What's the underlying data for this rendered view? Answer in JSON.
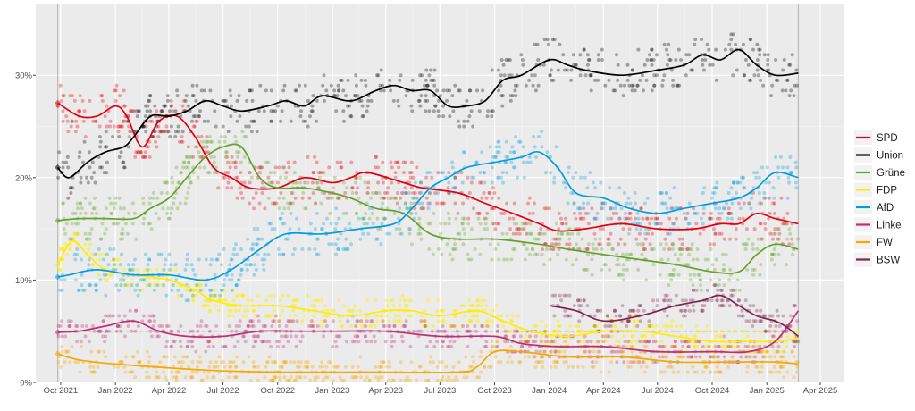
{
  "chart_data": {
    "type": "line",
    "title": "",
    "xlabel": "",
    "ylabel": "",
    "x_ticks": [
      "Oct 2021",
      "Jan 2022",
      "Apr 2022",
      "Jul 2022",
      "Oct 2022",
      "Jan 2023",
      "Apr 2023",
      "Jul 2023",
      "Oct 2023",
      "Jan 2024",
      "Apr 2024",
      "Jul 2024",
      "Oct 2024",
      "Jan 2025",
      "Apr 2025"
    ],
    "y_ticks": [
      "0%",
      "10%",
      "20%",
      "30%"
    ],
    "ylim": [
      0,
      37
    ],
    "xlim": [
      "2021-08-20",
      "2025-05-10"
    ],
    "reference_lines_x": [
      "2021-09-26",
      "2025-02-23"
    ],
    "threshold_y": 5,
    "grid": true,
    "legend_position": "right",
    "series": [
      {
        "name": "SPD",
        "color": "#e3000f",
        "points": [
          [
            "2021-09-26",
            27.3
          ],
          [
            "2021-11-01",
            26.0
          ],
          [
            "2021-12-01",
            26.0
          ],
          [
            "2022-01-01",
            27.0
          ],
          [
            "2022-01-20",
            26.0
          ],
          [
            "2022-02-15",
            23.0
          ],
          [
            "2022-03-15",
            25.5
          ],
          [
            "2022-04-15",
            26.0
          ],
          [
            "2022-05-15",
            24.0
          ],
          [
            "2022-06-15",
            21.0
          ],
          [
            "2022-07-15",
            20.0
          ],
          [
            "2022-08-15",
            19.0
          ],
          [
            "2022-10-01",
            19.0
          ],
          [
            "2022-11-15",
            20.0
          ],
          [
            "2023-01-01",
            19.5
          ],
          [
            "2023-02-01",
            20.0
          ],
          [
            "2023-03-01",
            20.5
          ],
          [
            "2023-05-01",
            19.5
          ],
          [
            "2023-06-01",
            19.0
          ],
          [
            "2023-08-01",
            18.5
          ],
          [
            "2023-09-15",
            17.5
          ],
          [
            "2023-11-01",
            16.5
          ],
          [
            "2023-12-15",
            15.5
          ],
          [
            "2024-01-15",
            14.8
          ],
          [
            "2024-03-01",
            15.0
          ],
          [
            "2024-05-01",
            15.5
          ],
          [
            "2024-07-01",
            15.0
          ],
          [
            "2024-09-01",
            15.0
          ],
          [
            "2024-10-15",
            15.5
          ],
          [
            "2024-11-15",
            15.5
          ],
          [
            "2024-12-15",
            16.5
          ],
          [
            "2025-01-15",
            16.0
          ],
          [
            "2025-02-23",
            15.5
          ]
        ]
      },
      {
        "name": "Union",
        "color": "#000000",
        "points": [
          [
            "2021-09-26",
            21.0
          ],
          [
            "2021-10-15",
            20.0
          ],
          [
            "2021-11-15",
            21.5
          ],
          [
            "2021-12-15",
            22.5
          ],
          [
            "2022-01-15",
            23.0
          ],
          [
            "2022-02-01",
            24.0
          ],
          [
            "2022-03-01",
            26.0
          ],
          [
            "2022-04-01",
            26.0
          ],
          [
            "2022-05-01",
            26.5
          ],
          [
            "2022-06-01",
            27.5
          ],
          [
            "2022-07-01",
            27.0
          ],
          [
            "2022-08-01",
            26.5
          ],
          [
            "2022-09-15",
            27.0
          ],
          [
            "2022-10-15",
            27.5
          ],
          [
            "2022-11-15",
            27.0
          ],
          [
            "2022-12-15",
            28.0
          ],
          [
            "2023-02-01",
            27.5
          ],
          [
            "2023-03-15",
            28.5
          ],
          [
            "2023-04-15",
            29.0
          ],
          [
            "2023-05-15",
            28.5
          ],
          [
            "2023-06-15",
            28.5
          ],
          [
            "2023-07-15",
            27.0
          ],
          [
            "2023-08-15",
            27.0
          ],
          [
            "2023-09-15",
            27.5
          ],
          [
            "2023-10-15",
            29.5
          ],
          [
            "2023-11-15",
            30.0
          ],
          [
            "2024-01-01",
            31.5
          ],
          [
            "2024-02-01",
            31.0
          ],
          [
            "2024-03-01",
            30.5
          ],
          [
            "2024-05-01",
            30.0
          ],
          [
            "2024-07-01",
            30.5
          ],
          [
            "2024-08-15",
            31.0
          ],
          [
            "2024-09-15",
            32.0
          ],
          [
            "2024-10-15",
            31.5
          ],
          [
            "2024-11-15",
            32.5
          ],
          [
            "2024-12-15",
            31.0
          ],
          [
            "2025-01-15",
            30.0
          ],
          [
            "2025-02-23",
            30.2
          ]
        ]
      },
      {
        "name": "Grüne",
        "color": "#64a12d",
        "points": [
          [
            "2021-09-26",
            15.8
          ],
          [
            "2021-11-01",
            16.0
          ],
          [
            "2021-12-15",
            16.0
          ],
          [
            "2022-02-01",
            16.0
          ],
          [
            "2022-03-01",
            17.0
          ],
          [
            "2022-04-01",
            18.0
          ],
          [
            "2022-05-01",
            20.0
          ],
          [
            "2022-06-01",
            22.0
          ],
          [
            "2022-07-01",
            23.0
          ],
          [
            "2022-08-01",
            23.0
          ],
          [
            "2022-09-01",
            20.0
          ],
          [
            "2022-10-01",
            19.0
          ],
          [
            "2022-11-15",
            19.0
          ],
          [
            "2023-01-01",
            18.5
          ],
          [
            "2023-02-01",
            18.0
          ],
          [
            "2023-03-15",
            17.0
          ],
          [
            "2023-05-01",
            16.5
          ],
          [
            "2023-06-15",
            14.5
          ],
          [
            "2023-08-01",
            14.0
          ],
          [
            "2023-10-01",
            14.0
          ],
          [
            "2023-12-15",
            13.5
          ],
          [
            "2024-02-01",
            13.0
          ],
          [
            "2024-04-01",
            12.5
          ],
          [
            "2024-06-01",
            12.0
          ],
          [
            "2024-08-01",
            11.5
          ],
          [
            "2024-10-01",
            10.8
          ],
          [
            "2024-11-15",
            10.8
          ],
          [
            "2024-12-15",
            12.5
          ],
          [
            "2025-01-15",
            13.5
          ],
          [
            "2025-02-23",
            13.0
          ]
        ]
      },
      {
        "name": "FDP",
        "color": "#ffed00",
        "points": [
          [
            "2021-09-26",
            11.5
          ],
          [
            "2021-10-20",
            13.8
          ],
          [
            "2021-11-15",
            12.5
          ],
          [
            "2021-12-15",
            11.0
          ],
          [
            "2022-02-01",
            10.5
          ],
          [
            "2022-04-01",
            10.0
          ],
          [
            "2022-05-15",
            9.0
          ],
          [
            "2022-06-15",
            8.0
          ],
          [
            "2022-08-01",
            7.5
          ],
          [
            "2022-10-01",
            7.5
          ],
          [
            "2022-12-01",
            7.0
          ],
          [
            "2023-02-01",
            6.5
          ],
          [
            "2023-04-01",
            7.0
          ],
          [
            "2023-05-15",
            7.0
          ],
          [
            "2023-07-01",
            6.5
          ],
          [
            "2023-09-01",
            7.0
          ],
          [
            "2023-10-15",
            6.0
          ],
          [
            "2023-12-01",
            5.0
          ],
          [
            "2024-02-01",
            4.5
          ],
          [
            "2024-04-01",
            5.0
          ],
          [
            "2024-06-01",
            5.0
          ],
          [
            "2024-08-01",
            4.5
          ],
          [
            "2024-10-01",
            4.0
          ],
          [
            "2024-12-01",
            4.0
          ],
          [
            "2025-01-15",
            4.0
          ],
          [
            "2025-02-23",
            4.3
          ]
        ]
      },
      {
        "name": "AfD",
        "color": "#009ee0",
        "points": [
          [
            "2021-09-26",
            10.3
          ],
          [
            "2021-10-15",
            10.5
          ],
          [
            "2021-12-01",
            11.0
          ],
          [
            "2022-02-01",
            10.5
          ],
          [
            "2022-04-01",
            10.5
          ],
          [
            "2022-06-01",
            10.0
          ],
          [
            "2022-07-15",
            11.0
          ],
          [
            "2022-09-01",
            13.0
          ],
          [
            "2022-10-15",
            14.5
          ],
          [
            "2022-12-15",
            14.5
          ],
          [
            "2023-02-15",
            15.0
          ],
          [
            "2023-04-15",
            15.5
          ],
          [
            "2023-05-15",
            17.0
          ],
          [
            "2023-06-15",
            19.0
          ],
          [
            "2023-07-15",
            20.0
          ],
          [
            "2023-08-15",
            21.0
          ],
          [
            "2023-10-01",
            21.5
          ],
          [
            "2023-11-15",
            22.0
          ],
          [
            "2023-12-15",
            22.5
          ],
          [
            "2024-01-15",
            21.0
          ],
          [
            "2024-02-15",
            18.5
          ],
          [
            "2024-04-01",
            18.0
          ],
          [
            "2024-05-15",
            17.0
          ],
          [
            "2024-07-01",
            16.5
          ],
          [
            "2024-08-15",
            17.0
          ],
          [
            "2024-10-01",
            17.5
          ],
          [
            "2024-11-15",
            18.0
          ],
          [
            "2024-12-15",
            19.0
          ],
          [
            "2025-01-15",
            20.5
          ],
          [
            "2025-02-23",
            20.0
          ]
        ]
      },
      {
        "name": "Linke",
        "color": "#be3075",
        "points": [
          [
            "2021-09-26",
            4.9
          ],
          [
            "2021-11-01",
            5.0
          ],
          [
            "2021-12-15",
            5.5
          ],
          [
            "2022-02-01",
            6.0
          ],
          [
            "2022-03-15",
            5.0
          ],
          [
            "2022-05-01",
            4.5
          ],
          [
            "2022-07-01",
            4.5
          ],
          [
            "2022-09-01",
            5.0
          ],
          [
            "2022-11-01",
            5.0
          ],
          [
            "2023-01-01",
            5.0
          ],
          [
            "2023-04-01",
            5.0
          ],
          [
            "2023-07-01",
            4.5
          ],
          [
            "2023-10-01",
            4.5
          ],
          [
            "2023-11-15",
            3.8
          ],
          [
            "2024-01-15",
            3.5
          ],
          [
            "2024-04-01",
            3.5
          ],
          [
            "2024-07-01",
            3.0
          ],
          [
            "2024-10-01",
            3.0
          ],
          [
            "2024-12-01",
            3.0
          ],
          [
            "2025-01-15",
            4.0
          ],
          [
            "2025-02-23",
            7.0
          ]
        ]
      },
      {
        "name": "FW",
        "color": "#f7a800",
        "points": [
          [
            "2021-09-26",
            2.8
          ],
          [
            "2021-11-01",
            2.2
          ],
          [
            "2022-01-01",
            1.8
          ],
          [
            "2022-06-01",
            1.2
          ],
          [
            "2022-10-01",
            1.0
          ],
          [
            "2023-03-01",
            1.0
          ],
          [
            "2023-08-01",
            1.0
          ],
          [
            "2023-09-01",
            1.5
          ],
          [
            "2023-10-01",
            3.0
          ],
          [
            "2023-11-15",
            3.0
          ],
          [
            "2024-02-01",
            2.5
          ],
          [
            "2024-05-01",
            2.5
          ],
          [
            "2024-08-01",
            2.0
          ],
          [
            "2024-11-01",
            2.0
          ],
          [
            "2025-01-15",
            2.0
          ],
          [
            "2025-02-23",
            1.8
          ]
        ]
      },
      {
        "name": "BSW",
        "color": "#7d254f",
        "points": [
          [
            "2024-01-01",
            7.5
          ],
          [
            "2024-02-15",
            7.0
          ],
          [
            "2024-04-01",
            6.0
          ],
          [
            "2024-06-01",
            6.5
          ],
          [
            "2024-08-01",
            7.5
          ],
          [
            "2024-09-15",
            8.0
          ],
          [
            "2024-10-15",
            8.5
          ],
          [
            "2024-11-15",
            7.5
          ],
          [
            "2024-12-15",
            6.5
          ],
          [
            "2025-01-15",
            6.0
          ],
          [
            "2025-02-01",
            5.5
          ],
          [
            "2025-02-23",
            4.5
          ]
        ]
      }
    ]
  }
}
